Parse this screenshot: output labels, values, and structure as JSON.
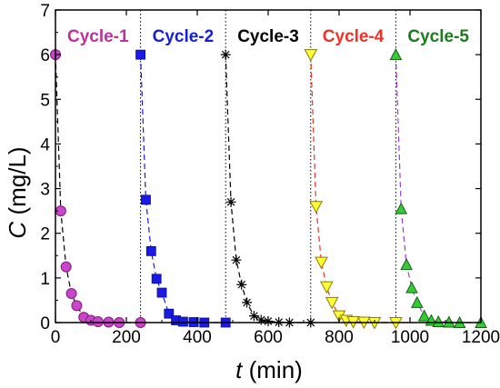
{
  "chart_data": {
    "type": "scatter",
    "xlabel": {
      "symbol": "t",
      "unit": " (min)"
    },
    "ylabel": {
      "symbol": "C",
      "unit": " (mg/L)"
    },
    "xlim": [
      0,
      1200
    ],
    "ylim": [
      0,
      7
    ],
    "xticks": [
      "0",
      "200",
      "400",
      "600",
      "800",
      "1000",
      "1200"
    ],
    "yticks": [
      "0",
      "1",
      "2",
      "3",
      "4",
      "5",
      "6",
      "7"
    ],
    "grid": false,
    "cycle_boundaries": [
      240,
      480,
      720,
      960
    ],
    "series": [
      {
        "name": "Cycle-1",
        "label_color": "#C0309C",
        "marker": "circle",
        "fill": "#CC44CC",
        "stroke": "#7A1F7A",
        "line_color": "#000000",
        "x": [
          0,
          15,
          30,
          45,
          60,
          80,
          100,
          120,
          150,
          180,
          240
        ],
        "y": [
          6.0,
          2.5,
          1.25,
          0.65,
          0.38,
          0.12,
          0.05,
          0.02,
          0.01,
          0.0,
          0.0
        ]
      },
      {
        "name": "Cycle-2",
        "label_color": "#1520D8",
        "marker": "square",
        "fill": "#1A1AE6",
        "stroke": "#0A0A90",
        "line_color": "#1A1AE6",
        "x": [
          240,
          255,
          270,
          285,
          300,
          320,
          340,
          360,
          390,
          420,
          480
        ],
        "y": [
          6.0,
          2.75,
          1.6,
          0.98,
          0.67,
          0.2,
          0.05,
          0.02,
          0.01,
          0.0,
          0.0
        ]
      },
      {
        "name": "Cycle-3",
        "label_color": "#000000",
        "marker": "asterisk",
        "fill": "#000000",
        "stroke": "#000000",
        "line_color": "#000000",
        "x": [
          480,
          495,
          510,
          525,
          540,
          560,
          580,
          600,
          630,
          660,
          720
        ],
        "y": [
          6.0,
          2.7,
          1.4,
          0.85,
          0.45,
          0.15,
          0.06,
          0.03,
          0.01,
          0.0,
          0.0
        ]
      },
      {
        "name": "Cycle-4",
        "label_color": "#E8342A",
        "marker": "triangle-down",
        "fill": "#FFFF33",
        "stroke": "#8A7A00",
        "line_color": "#E8342A",
        "x": [
          720,
          735,
          750,
          765,
          780,
          800,
          820,
          840,
          870,
          900,
          960
        ],
        "y": [
          6.0,
          2.6,
          1.35,
          0.8,
          0.45,
          0.15,
          0.05,
          0.02,
          0.01,
          0.0,
          0.0
        ]
      },
      {
        "name": "Cycle-5",
        "label_color": "#1E7A1E",
        "marker": "triangle-up",
        "fill": "#33CC33",
        "stroke": "#1A5E1A",
        "line_color": "#9A3FD1",
        "x": [
          960,
          975,
          990,
          1005,
          1020,
          1040,
          1060,
          1080,
          1110,
          1140,
          1200
        ],
        "y": [
          6.0,
          2.55,
          1.3,
          0.78,
          0.45,
          0.15,
          0.05,
          0.02,
          0.01,
          0.0,
          0.0
        ]
      }
    ]
  }
}
